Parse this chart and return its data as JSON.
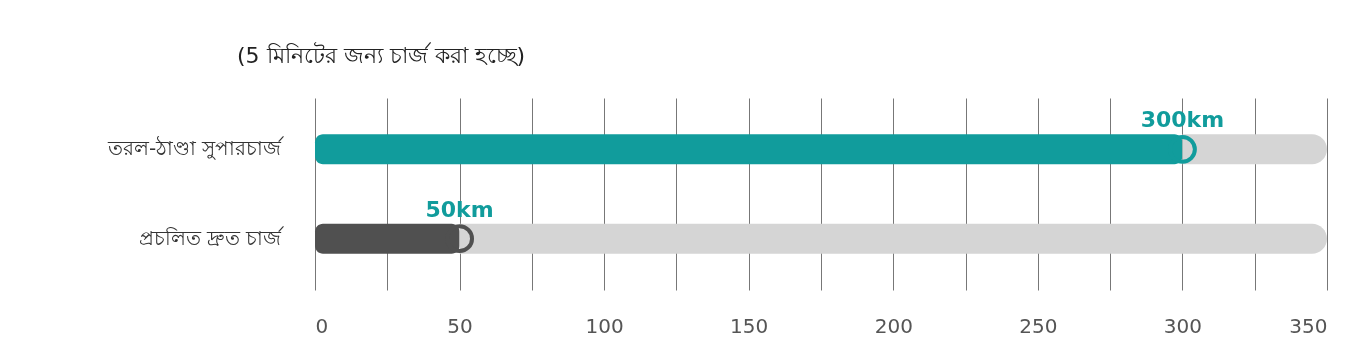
{
  "chart_data": {
    "type": "bar",
    "orientation": "horizontal",
    "stacked": true,
    "title": "(5 মিনিটের জন্য চার্জ করা হচ্ছে)",
    "categories": [
      "তরল-ঠাণ্ডা সুপারচার্জ",
      "প্রচলিত দ্রুত চার্জ"
    ],
    "series": [
      {
        "colors": [
          "#119c9c",
          "#505050"
        ],
        "values": [
          300,
          50
        ],
        "value_labels": [
          "300km",
          "50km"
        ]
      },
      {
        "color": "#d5d5d5",
        "values": [
          50,
          300
        ]
      }
    ],
    "xlim": [
      0,
      350
    ],
    "xticks": [
      0,
      {
        "value": 25,
        "label": null
      },
      50,
      {
        "value": 75,
        "label": null
      },
      100,
      {
        "value": 125,
        "label": null
      },
      150,
      {
        "value": 175,
        "label": null
      },
      200,
      {
        "value": 225,
        "label": null
      },
      250,
      {
        "value": 275,
        "label": null
      },
      300,
      {
        "value": 325,
        "label": null
      },
      350
    ],
    "grid": "x",
    "marker": "circle"
  }
}
